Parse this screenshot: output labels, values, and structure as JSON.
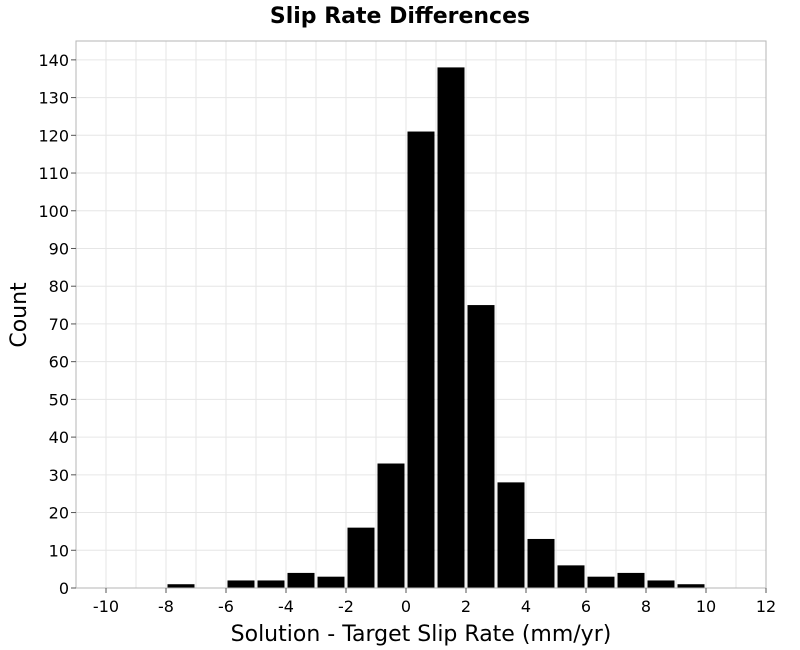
{
  "chart_data": {
    "type": "bar",
    "title": "Slip Rate Differences",
    "xlabel": "Solution - Target Slip Rate (mm/yr)",
    "ylabel": "Count",
    "xlim": [
      -11,
      12
    ],
    "ylim": [
      0,
      145
    ],
    "xticks": [
      -10,
      -8,
      -6,
      -4,
      -2,
      0,
      2,
      4,
      6,
      8,
      10,
      12
    ],
    "yticks": [
      0,
      10,
      20,
      30,
      40,
      50,
      60,
      70,
      80,
      90,
      100,
      110,
      120,
      130,
      140
    ],
    "bin_width": 1,
    "bins": [
      {
        "x": -8,
        "value": 1
      },
      {
        "x": -6,
        "value": 2
      },
      {
        "x": -5,
        "value": 2
      },
      {
        "x": -4,
        "value": 4
      },
      {
        "x": -3,
        "value": 3
      },
      {
        "x": -2,
        "value": 16
      },
      {
        "x": -1,
        "value": 33
      },
      {
        "x": 0,
        "value": 121
      },
      {
        "x": 1,
        "value": 138
      },
      {
        "x": 2,
        "value": 75
      },
      {
        "x": 3,
        "value": 28
      },
      {
        "x": 4,
        "value": 13
      },
      {
        "x": 5,
        "value": 6
      },
      {
        "x": 6,
        "value": 3
      },
      {
        "x": 7,
        "value": 4
      },
      {
        "x": 8,
        "value": 2
      },
      {
        "x": 9,
        "value": 1
      }
    ],
    "grid": true,
    "colors": {
      "bar": "#000000",
      "grid": "#e6e6e6",
      "frame": "#b5b5b5"
    }
  }
}
